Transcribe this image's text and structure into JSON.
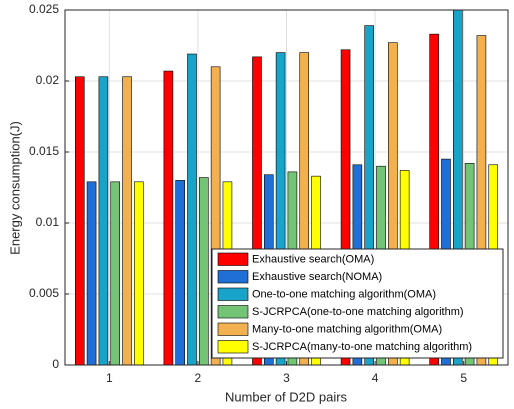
{
  "chart_data": {
    "type": "bar",
    "x_label": "Number of D2D pairs",
    "y_label": "Energy consumption(J)",
    "categories": [
      1,
      2,
      3,
      4,
      5
    ],
    "series": [
      {
        "name": "Exhaustive search(OMA)",
        "color": "#ff0000",
        "values": [
          0.0203,
          0.0207,
          0.0217,
          0.0222,
          0.0233
        ]
      },
      {
        "name": "Exhaustive search(NOMA)",
        "color": "#1f6fd6",
        "values": [
          0.0129,
          0.013,
          0.0134,
          0.0141,
          0.0145
        ]
      },
      {
        "name": "One-to-one matching algorithm(OMA)",
        "color": "#18a4c8",
        "values": [
          0.0203,
          0.0219,
          0.022,
          0.0239,
          0.025
        ]
      },
      {
        "name": "S-JCRPCA(one-to-one matching algorithm)",
        "color": "#74c476",
        "values": [
          0.0129,
          0.0132,
          0.0136,
          0.014,
          0.0142
        ]
      },
      {
        "name": "Many-to-one matching algorithm(OMA)",
        "color": "#f2b04e",
        "values": [
          0.0203,
          0.021,
          0.022,
          0.0227,
          0.0232
        ]
      },
      {
        "name": "S-JCRPCA(many-to-one matching algorithm)",
        "color": "#ffff00",
        "values": [
          0.0129,
          0.0129,
          0.0133,
          0.0137,
          0.0141
        ]
      }
    ],
    "ylim": [
      0,
      0.025
    ],
    "yticks": [
      0,
      0.005,
      0.01,
      0.015,
      0.02,
      0.025
    ],
    "grid": true,
    "legend": "lower-right"
  }
}
